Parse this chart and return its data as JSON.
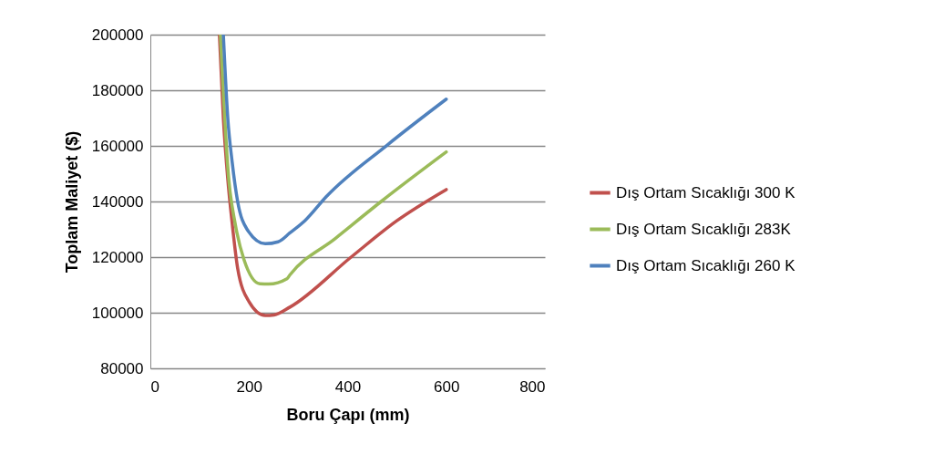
{
  "chart_data": {
    "type": "line",
    "xlabel": "Boru Çapı (mm)",
    "ylabel": "Toplam Maliyet ($)",
    "xlim": [
      0,
      800
    ],
    "xticks": [
      0,
      200,
      400,
      600,
      800
    ],
    "ylim": [
      80000,
      200000
    ],
    "yticks": [
      80000,
      100000,
      120000,
      140000,
      160000,
      180000,
      200000
    ],
    "grid": "y",
    "legend": "right",
    "line_style": "solid",
    "series": [
      {
        "name": "Dış Ortam Sıcaklığı 300 K",
        "color": "#c0504d",
        "x": [
          140,
          148,
          157,
          166,
          177,
          200,
          233,
          251,
          283,
          407,
          499,
          600
        ],
        "values": [
          200000,
          170000,
          148000,
          132000,
          116000,
          104000,
          99000,
          99200,
          102000,
          120000,
          133000,
          144300
        ]
      },
      {
        "name": "Dış Ortam Sıcaklığı 283K",
        "color": "#9bbb59",
        "x": [
          142,
          159,
          172,
          190,
          222,
          240,
          277,
          283,
          375,
          468,
          600
        ],
        "values": [
          200000,
          148000,
          132000,
          119000,
          110400,
          110300,
          112200,
          113600,
          126700,
          140000,
          157800
        ]
      },
      {
        "name": "Dış Ortam Sıcaklığı 260 K",
        "color": "#4f81bd",
        "x": [
          148,
          157,
          166,
          177,
          196,
          233,
          259,
          283,
          314,
          357,
          481,
          600
        ],
        "values": [
          200000,
          170000,
          154000,
          140000,
          130000,
          124800,
          125500,
          128700,
          133200,
          141800,
          160400,
          176800
        ]
      }
    ]
  }
}
